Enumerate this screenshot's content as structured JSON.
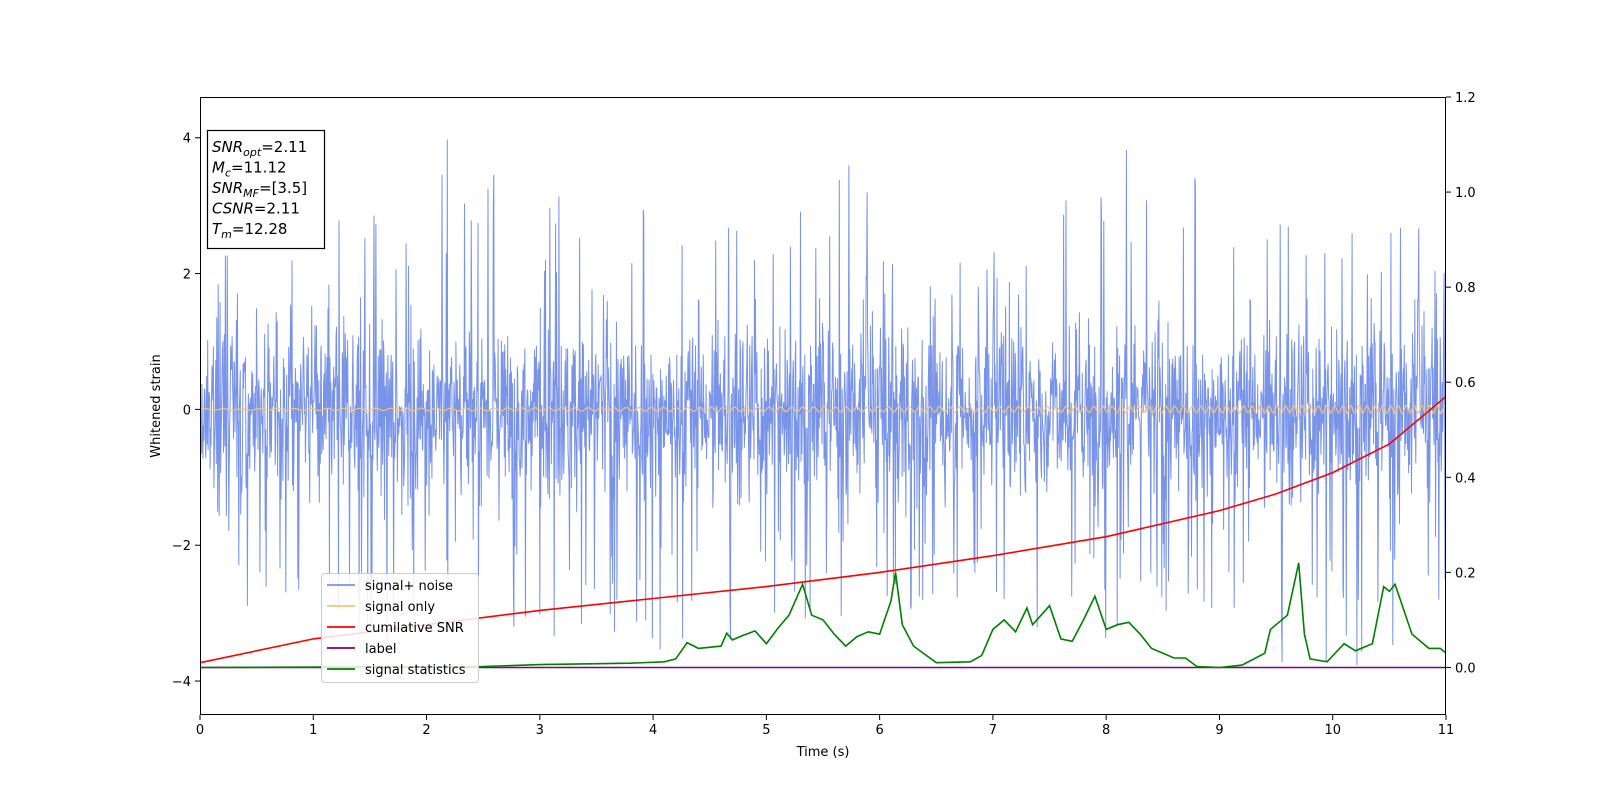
{
  "info_box": {
    "lines": [
      {
        "symbol": "SNR",
        "sub": "opt",
        "value": "=2.11"
      },
      {
        "symbol": "M",
        "sub": "c",
        "value": "=11.12"
      },
      {
        "symbol": "SNR",
        "sub": "MF",
        "value": "=[3.5]"
      },
      {
        "symbol": "CSNR",
        "sub": "",
        "value": "=2.11"
      },
      {
        "symbol": "T",
        "sub": "m",
        "value": "=12.28"
      }
    ]
  },
  "colors": {
    "noise": "#7893e8",
    "signal": "#f5c475",
    "cumulative_snr": "#ff0000",
    "label": "#800080",
    "statistics": "#008000"
  },
  "chart_data": {
    "type": "line",
    "xlabel": "Time (s)",
    "ylabel": "Whitened strain",
    "xlim": [
      0,
      11
    ],
    "ylim_left": [
      -4.5,
      4.6
    ],
    "ylim_right": [
      -0.1,
      1.2
    ],
    "xticks": [
      0,
      1,
      2,
      3,
      4,
      5,
      6,
      7,
      8,
      9,
      10,
      11
    ],
    "yticks_left": [
      -4,
      -2,
      0,
      2,
      4
    ],
    "yticks_left_labels": [
      "−4",
      "−2",
      "0",
      "2",
      "4"
    ],
    "yticks_right": [
      0.0,
      0.2,
      0.4,
      0.6,
      0.8,
      1.0,
      1.2
    ],
    "yticks_right_labels": [
      "0.0",
      "0.2",
      "0.4",
      "0.6",
      "0.8",
      "1.0",
      "1.2"
    ],
    "grid": false,
    "legend_position": "lower-left",
    "series": [
      {
        "name": "signal+ noise",
        "axis": "left",
        "kind": "noise",
        "envelope_upper": [
          [
            0,
            2.4
          ],
          [
            1,
            2.8
          ],
          [
            2,
            3.0
          ],
          [
            2.2,
            4.2
          ],
          [
            3,
            3.2
          ],
          [
            4,
            3.0
          ],
          [
            5,
            2.7
          ],
          [
            5.75,
            3.8
          ],
          [
            6,
            3.0
          ],
          [
            7,
            2.8
          ],
          [
            8,
            3.8
          ],
          [
            8.6,
            4.0
          ],
          [
            9,
            2.9
          ],
          [
            10,
            2.8
          ],
          [
            11,
            2.8
          ]
        ],
        "envelope_lower": [
          [
            0,
            -2.5
          ],
          [
            1.55,
            -4.1
          ],
          [
            2,
            -3.0
          ],
          [
            3,
            -3.4
          ],
          [
            4.2,
            -3.7
          ],
          [
            5,
            -3.2
          ],
          [
            6,
            -3.0
          ],
          [
            7,
            -3.1
          ],
          [
            8,
            -3.5
          ],
          [
            9,
            -3.0
          ],
          [
            9.75,
            -4.0
          ],
          [
            10.15,
            -3.9
          ],
          [
            11,
            -3.0
          ]
        ]
      },
      {
        "name": "signal only",
        "axis": "left",
        "kind": "chirp",
        "amplitude_start": 0.01,
        "amplitude_end": 0.06
      },
      {
        "name": "cumilative SNR",
        "axis": "right",
        "kind": "line",
        "points": [
          [
            0,
            0.01
          ],
          [
            1,
            0.06
          ],
          [
            2,
            0.09
          ],
          [
            3,
            0.12
          ],
          [
            4,
            0.145
          ],
          [
            5,
            0.17
          ],
          [
            6,
            0.2
          ],
          [
            7,
            0.235
          ],
          [
            8,
            0.275
          ],
          [
            9,
            0.33
          ],
          [
            9.5,
            0.365
          ],
          [
            10,
            0.41
          ],
          [
            10.5,
            0.47
          ],
          [
            11,
            0.57
          ]
        ]
      },
      {
        "name": "label",
        "axis": "right",
        "kind": "line",
        "points": [
          [
            0,
            0.0
          ],
          [
            11,
            0.0
          ]
        ]
      },
      {
        "name": "signal statistics",
        "axis": "right",
        "kind": "line",
        "points": [
          [
            0,
            0.0
          ],
          [
            2.5,
            0.002
          ],
          [
            3,
            0.006
          ],
          [
            3.8,
            0.009
          ],
          [
            4.1,
            0.012
          ],
          [
            4.2,
            0.018
          ],
          [
            4.3,
            0.052
          ],
          [
            4.4,
            0.04
          ],
          [
            4.6,
            0.045
          ],
          [
            4.65,
            0.072
          ],
          [
            4.7,
            0.058
          ],
          [
            4.8,
            0.068
          ],
          [
            4.9,
            0.077
          ],
          [
            5.0,
            0.05
          ],
          [
            5.1,
            0.082
          ],
          [
            5.2,
            0.11
          ],
          [
            5.32,
            0.175
          ],
          [
            5.4,
            0.11
          ],
          [
            5.5,
            0.1
          ],
          [
            5.6,
            0.07
          ],
          [
            5.7,
            0.045
          ],
          [
            5.8,
            0.065
          ],
          [
            5.9,
            0.075
          ],
          [
            6.0,
            0.07
          ],
          [
            6.1,
            0.14
          ],
          [
            6.14,
            0.2
          ],
          [
            6.2,
            0.09
          ],
          [
            6.3,
            0.045
          ],
          [
            6.5,
            0.01
          ],
          [
            6.8,
            0.012
          ],
          [
            6.9,
            0.025
          ],
          [
            7.0,
            0.08
          ],
          [
            7.1,
            0.1
          ],
          [
            7.2,
            0.075
          ],
          [
            7.3,
            0.125
          ],
          [
            7.35,
            0.09
          ],
          [
            7.5,
            0.13
          ],
          [
            7.6,
            0.06
          ],
          [
            7.7,
            0.055
          ],
          [
            7.8,
            0.1
          ],
          [
            7.9,
            0.15
          ],
          [
            8.0,
            0.08
          ],
          [
            8.1,
            0.09
          ],
          [
            8.2,
            0.095
          ],
          [
            8.3,
            0.07
          ],
          [
            8.4,
            0.04
          ],
          [
            8.6,
            0.02
          ],
          [
            8.7,
            0.02
          ],
          [
            8.8,
            0.002
          ],
          [
            9.0,
            0.0
          ],
          [
            9.2,
            0.005
          ],
          [
            9.4,
            0.03
          ],
          [
            9.45,
            0.08
          ],
          [
            9.6,
            0.11
          ],
          [
            9.7,
            0.22
          ],
          [
            9.75,
            0.07
          ],
          [
            9.8,
            0.018
          ],
          [
            9.95,
            0.012
          ],
          [
            10.1,
            0.05
          ],
          [
            10.2,
            0.035
          ],
          [
            10.35,
            0.05
          ],
          [
            10.45,
            0.17
          ],
          [
            10.5,
            0.16
          ],
          [
            10.55,
            0.175
          ],
          [
            10.6,
            0.14
          ],
          [
            10.7,
            0.07
          ],
          [
            10.85,
            0.04
          ],
          [
            10.95,
            0.04
          ],
          [
            11.0,
            0.03
          ]
        ]
      }
    ]
  }
}
